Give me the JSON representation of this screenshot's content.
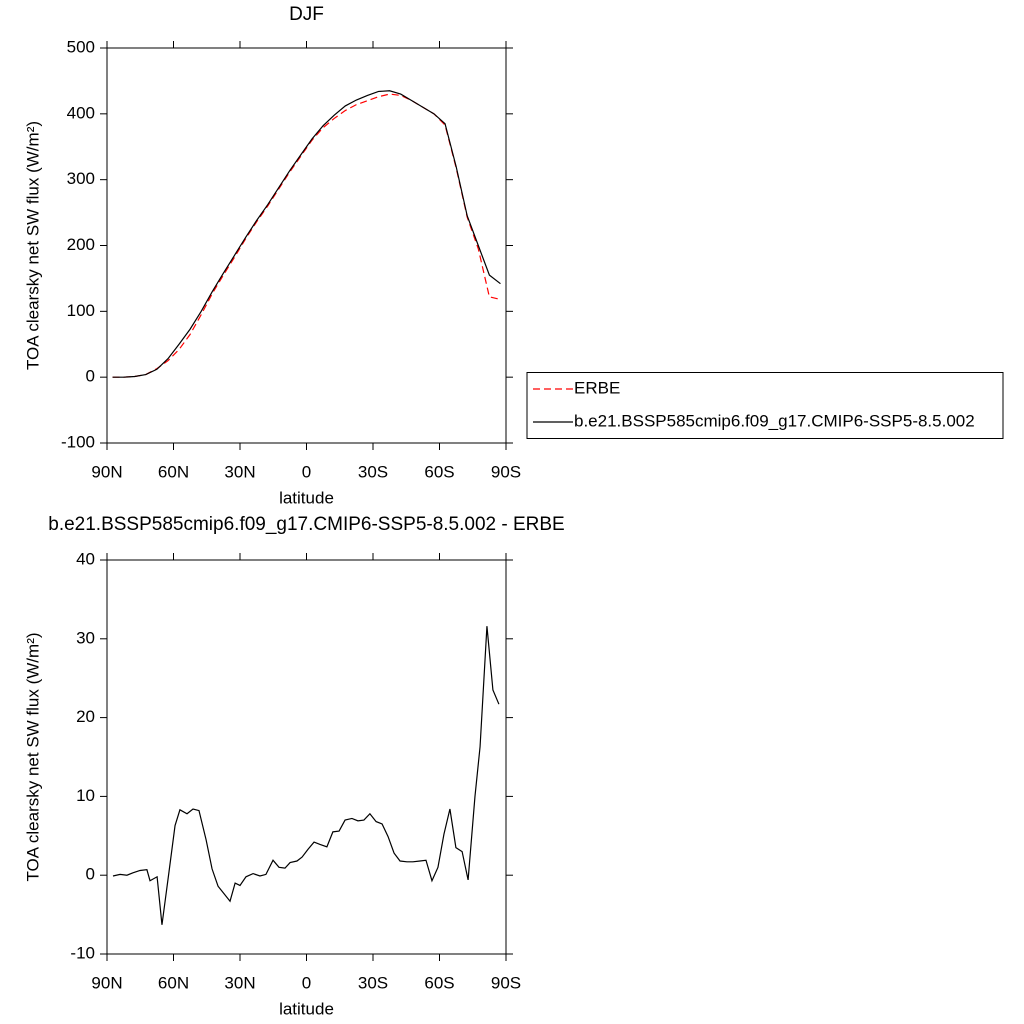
{
  "chart_data": [
    {
      "type": "line",
      "title": "DJF",
      "xlabel": "latitude",
      "ylabel": "TOA clearsky net SW flux (W/m²)",
      "x": [
        87.5,
        82.5,
        77.5,
        72.5,
        67.5,
        62.5,
        57.5,
        52.5,
        47.5,
        42.5,
        37.5,
        32.5,
        27.5,
        22.5,
        17.5,
        12.5,
        7.5,
        2.5,
        -2.5,
        -7.5,
        -12.5,
        -17.5,
        -22.5,
        -27.5,
        -32.5,
        -37.5,
        -42.5,
        -47.5,
        -52.5,
        -57.5,
        -62.5,
        -67.5,
        -72.5,
        -77.5,
        -82.5,
        -87.5
      ],
      "series": [
        {
          "name": "ERBE",
          "color": "#ff0000",
          "dashed": true,
          "values": [
            0,
            0,
            1,
            4,
            13,
            25,
            42,
            65,
            95,
            127,
            155,
            182,
            210,
            236,
            260,
            286,
            312,
            336,
            360,
            379,
            393,
            405,
            414,
            420,
            426,
            430,
            428,
            420,
            410,
            400,
            383,
            318,
            243,
            195,
            122,
            118
          ]
        },
        {
          "name": "b.e21.BSSP585cmip6.f09_g17.CMIP6-SSP5-8.5.002",
          "color": "#000000",
          "dashed": false,
          "values": [
            0,
            0,
            1,
            4,
            12,
            28,
            50,
            73,
            100,
            130,
            158,
            185,
            212,
            238,
            262,
            288,
            314,
            338,
            362,
            382,
            398,
            412,
            421,
            428,
            434,
            435,
            430,
            420,
            410,
            400,
            385,
            320,
            245,
            200,
            155,
            142
          ]
        }
      ],
      "xlim": [
        90,
        -90
      ],
      "xticks": [
        {
          "value": 90,
          "label": "90N"
        },
        {
          "value": 60,
          "label": "60N"
        },
        {
          "value": 30,
          "label": "30N"
        },
        0,
        {
          "value": -30,
          "label": "30S"
        },
        {
          "value": -60,
          "label": "60S"
        },
        {
          "value": -90,
          "label": "90S"
        }
      ],
      "ylim": [
        -100,
        500
      ],
      "yticks": [
        -100,
        0,
        100,
        200,
        300,
        400,
        500
      ],
      "legend": "right"
    },
    {
      "type": "line",
      "title": "b.e21.BSSP585cmip6.f09_g17.CMIP6-SSP5-8.5.002 - ERBE",
      "xlabel": "latitude",
      "ylabel": "TOA clearsky net SW flux (W/m²)",
      "x": [
        87.3,
        84.1,
        81.0,
        78.3,
        75.1,
        72.0,
        70.6,
        67.4,
        65.2,
        62.0,
        59.3,
        57.1,
        53.9,
        51.2,
        48.5,
        45.3,
        42.6,
        39.9,
        34.5,
        32.2,
        30.0,
        27.3,
        24.1,
        21.0,
        18.3,
        15.1,
        12.4,
        9.7,
        7.4,
        4.3,
        2.0,
        -0.7,
        -3.4,
        -6.1,
        -9.2,
        -11.9,
        -14.7,
        -17.4,
        -20.5,
        -23.2,
        -25.9,
        -28.6,
        -31.4,
        -34.1,
        -36.8,
        -39.5,
        -42.2,
        -45.3,
        -48.0,
        -51.2,
        -53.9,
        -56.6,
        -59.3,
        -62.0,
        -64.7,
        -67.4,
        -70.2,
        -72.9,
        -76.0,
        -78.3,
        -81.4,
        -84.1,
        -86.8
      ],
      "series": [
        {
          "color": "#000000",
          "dashed": false,
          "values": [
            -0.1,
            0.1,
            0,
            0.3,
            0.6,
            0.7,
            -0.7,
            -0.2,
            -6.3,
            0.5,
            6.3,
            8.3,
            7.8,
            8.4,
            8.2,
            4.5,
            0.8,
            -1.4,
            -3.3,
            -1.0,
            -1.3,
            -0.2,
            0.2,
            -0.1,
            0.1,
            1.9,
            1.0,
            0.9,
            1.6,
            1.8,
            2.3,
            3.3,
            4.2,
            3.9,
            3.6,
            5.5,
            5.6,
            7.0,
            7.2,
            6.9,
            7.0,
            7.8,
            6.8,
            6.5,
            4.9,
            2.8,
            1.8,
            1.7,
            1.7,
            1.8,
            1.9,
            -0.7,
            1.0,
            5.2,
            8.4,
            3.5,
            3.0,
            -0.6,
            10.0,
            16.3,
            31.6,
            23.5,
            21.7
          ]
        }
      ],
      "xlim": [
        90,
        -90
      ],
      "xticks": [
        {
          "value": 90,
          "label": "90N"
        },
        {
          "value": 60,
          "label": "60N"
        },
        {
          "value": 30,
          "label": "30N"
        },
        0,
        {
          "value": -30,
          "label": "30S"
        },
        {
          "value": -60,
          "label": "60S"
        },
        {
          "value": -90,
          "label": "90S"
        }
      ],
      "ylim": [
        -10,
        40
      ],
      "yticks": [
        -10,
        0,
        10,
        20,
        30,
        40
      ]
    }
  ]
}
